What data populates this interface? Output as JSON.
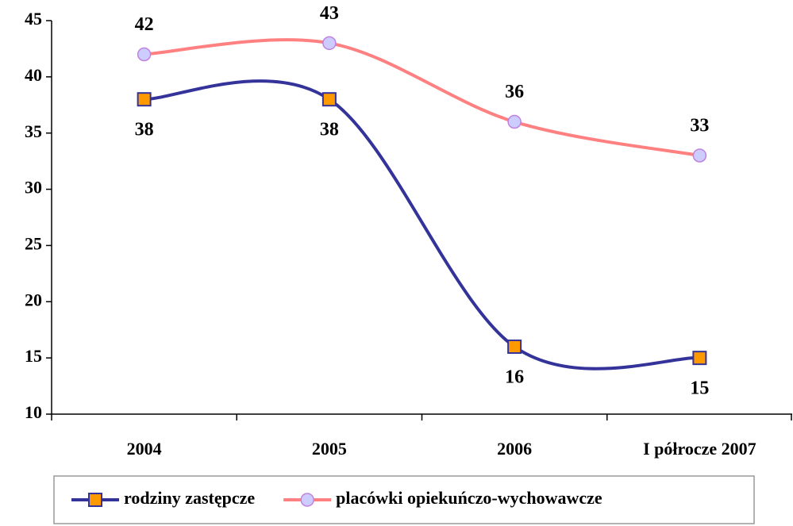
{
  "chart_data": {
    "type": "line",
    "categories": [
      "2004",
      "2005",
      "2006",
      "I półrocze 2007"
    ],
    "series": [
      {
        "name": "rodziny zastępcze",
        "color": "#333399",
        "marker": "square",
        "marker_color": "#FF9900",
        "values": [
          38,
          38,
          16,
          15
        ]
      },
      {
        "name": "placówki opiekuńczo-wychowawcze",
        "color": "#FF8080",
        "marker": "circle",
        "marker_color": "#CCCCFF",
        "values": [
          42,
          43,
          36,
          33
        ]
      }
    ],
    "ylim": [
      10,
      45
    ],
    "yticks": [
      10,
      15,
      20,
      25,
      30,
      35,
      40,
      45
    ],
    "smooth": true,
    "grid": false,
    "legend": "bottom"
  }
}
